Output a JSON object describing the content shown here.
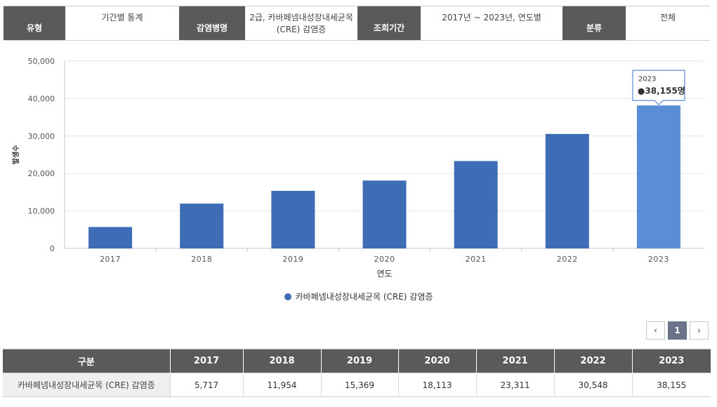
{
  "filters": [
    {
      "label": "유형",
      "value": "기간별 통계"
    },
    {
      "label": "감염병명",
      "value": "2급, 카바페넴내성장내세균목\n(CRE) 감염증"
    },
    {
      "label": "조회기간",
      "value": "2017년 ~ 2023년, 연도별"
    },
    {
      "label": "분류",
      "value": "전체"
    }
  ],
  "chart_data": {
    "type": "bar",
    "categories": [
      "2017",
      "2018",
      "2019",
      "2020",
      "2021",
      "2022",
      "2023"
    ],
    "series": [
      {
        "name": "카바페넴내성장내세균목 (CRE) 감염증",
        "values": [
          5717,
          11954,
          15369,
          18113,
          23311,
          30548,
          38155
        ]
      }
    ],
    "ylabel": "발생수",
    "xlabel": "연도",
    "ylim": [
      0,
      50000
    ],
    "yticks": [
      "0",
      "10,000",
      "20,000",
      "30,000",
      "40,000",
      "50,000"
    ],
    "grid": true,
    "legend": "bottom",
    "highlight_index": 6,
    "tooltip": {
      "title": "2023",
      "value": "●38,155명"
    },
    "colors": {
      "bar": "#3e6db5",
      "bar_highlight": "#5b8cd6",
      "grid": "#e6e6e6",
      "axis": "#c8c8c8"
    }
  },
  "pagination": {
    "prev": "‹",
    "current": "1",
    "next": "›"
  },
  "table": {
    "headers": [
      "구분",
      "2017",
      "2018",
      "2019",
      "2020",
      "2021",
      "2022",
      "2023"
    ],
    "rows": [
      [
        "카바페넴내성장내세균목 (CRE) 감염증",
        "5,717",
        "11,954",
        "15,369",
        "18,113",
        "23,311",
        "30,548",
        "38,155"
      ]
    ]
  }
}
